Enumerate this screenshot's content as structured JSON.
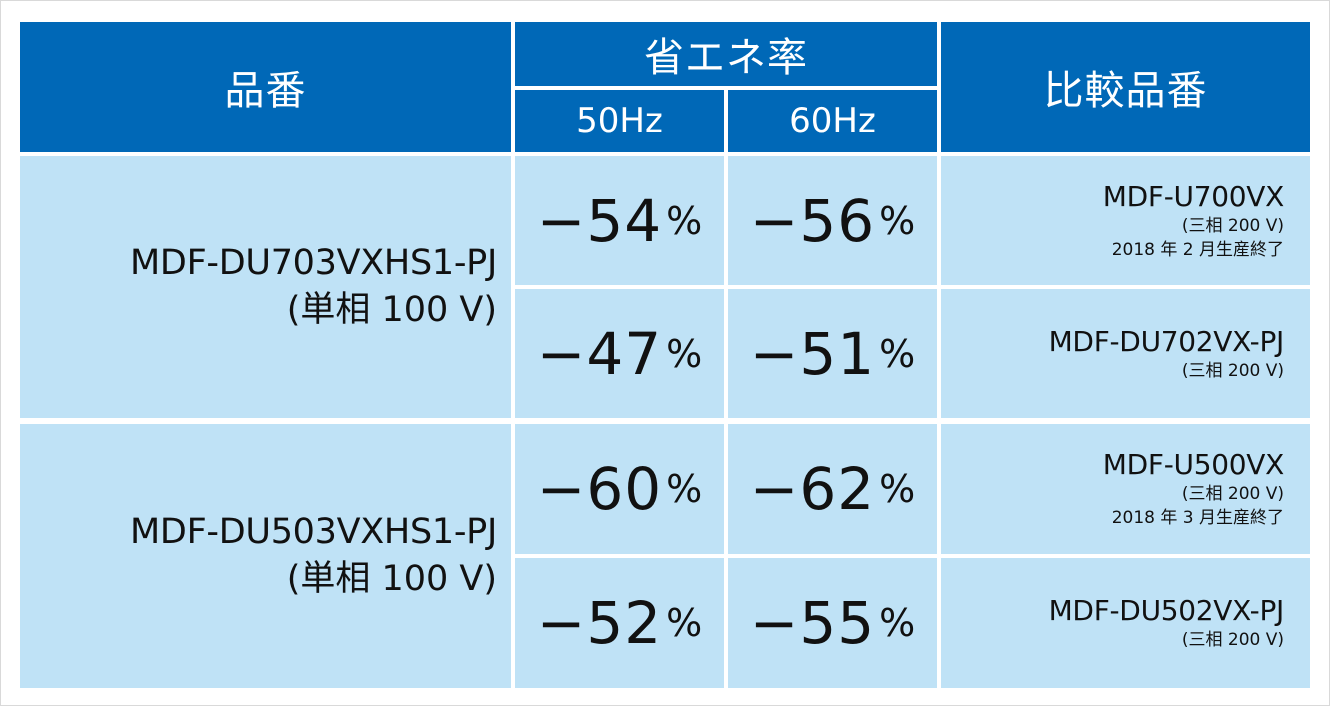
{
  "header": {
    "product": "品番",
    "saving_rate": "省エネ率",
    "freq_50": "50Hz",
    "freq_60": "60Hz",
    "compare": "比較品番"
  },
  "groups": [
    {
      "product_name": "MDF-DU703VXHS1-PJ",
      "product_spec": "(単相 100 V)",
      "rows": [
        {
          "rate_50": "−54",
          "rate_60": "−56",
          "unit": "%",
          "compare_name": "MDF-U700VX",
          "compare_spec": "(三相 200 V)",
          "compare_note": "2018 年 2 月生産終了"
        },
        {
          "rate_50": "−47",
          "rate_60": "−51",
          "unit": "%",
          "compare_name": "MDF-DU702VX-PJ",
          "compare_spec": "(三相 200 V)"
        }
      ]
    },
    {
      "product_name": "MDF-DU503VXHS1-PJ",
      "product_spec": "(単相 100 V)",
      "rows": [
        {
          "rate_50": "−60",
          "rate_60": "−62",
          "unit": "%",
          "compare_name": "MDF-U500VX",
          "compare_spec": "(三相 200 V)",
          "compare_note": "2018 年 3 月生産終了"
        },
        {
          "rate_50": "−52",
          "rate_60": "−55",
          "unit": "%",
          "compare_name": "MDF-DU502VX-PJ",
          "compare_spec": "(三相 200 V)"
        }
      ]
    }
  ],
  "colors": {
    "header_bg": "#0068b7",
    "body_bg": "#bfe2f6"
  }
}
